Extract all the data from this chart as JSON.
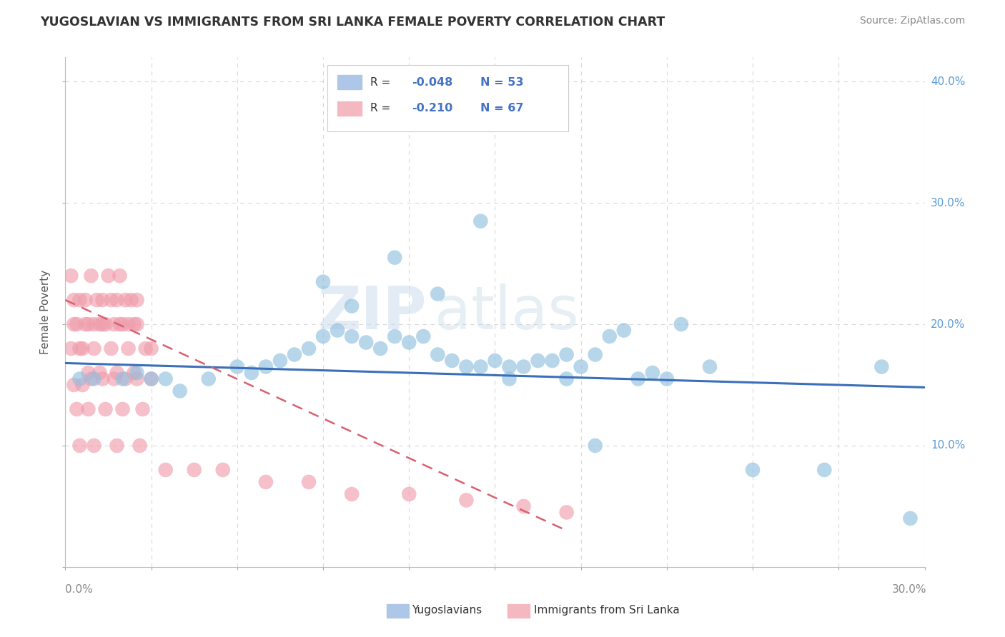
{
  "title": "YUGOSLAVIAN VS IMMIGRANTS FROM SRI LANKA FEMALE POVERTY CORRELATION CHART",
  "source": "Source: ZipAtlas.com",
  "ylabel": "Female Poverty",
  "xlim": [
    0,
    0.3
  ],
  "ylim": [
    0,
    0.42
  ],
  "yticks": [
    0,
    0.1,
    0.2,
    0.3,
    0.4
  ],
  "xticks": [
    0,
    0.03,
    0.06,
    0.09,
    0.12,
    0.15,
    0.18,
    0.21,
    0.24,
    0.27,
    0.3
  ],
  "blue_scatter_x": [
    0.005,
    0.01,
    0.02,
    0.025,
    0.03,
    0.035,
    0.04,
    0.05,
    0.06,
    0.065,
    0.07,
    0.075,
    0.08,
    0.085,
    0.09,
    0.095,
    0.1,
    0.105,
    0.11,
    0.115,
    0.12,
    0.125,
    0.13,
    0.135,
    0.14,
    0.145,
    0.15,
    0.155,
    0.16,
    0.165,
    0.17,
    0.175,
    0.18,
    0.185,
    0.19,
    0.195,
    0.2,
    0.205,
    0.21,
    0.215,
    0.09,
    0.1,
    0.115,
    0.13,
    0.145,
    0.155,
    0.175,
    0.185,
    0.225,
    0.24,
    0.265,
    0.285,
    0.295
  ],
  "blue_scatter_y": [
    0.155,
    0.155,
    0.155,
    0.16,
    0.155,
    0.155,
    0.145,
    0.155,
    0.165,
    0.16,
    0.165,
    0.17,
    0.175,
    0.18,
    0.19,
    0.195,
    0.19,
    0.185,
    0.18,
    0.19,
    0.185,
    0.19,
    0.175,
    0.17,
    0.165,
    0.165,
    0.17,
    0.165,
    0.165,
    0.17,
    0.17,
    0.175,
    0.165,
    0.175,
    0.19,
    0.195,
    0.155,
    0.16,
    0.155,
    0.2,
    0.235,
    0.215,
    0.255,
    0.225,
    0.285,
    0.155,
    0.155,
    0.1,
    0.165,
    0.08,
    0.08,
    0.165,
    0.04
  ],
  "pink_scatter_x": [
    0.002,
    0.003,
    0.004,
    0.005,
    0.006,
    0.007,
    0.008,
    0.009,
    0.01,
    0.011,
    0.012,
    0.013,
    0.014,
    0.015,
    0.016,
    0.017,
    0.018,
    0.019,
    0.02,
    0.021,
    0.022,
    0.023,
    0.024,
    0.025,
    0.002,
    0.003,
    0.005,
    0.007,
    0.01,
    0.013,
    0.016,
    0.019,
    0.022,
    0.025,
    0.028,
    0.008,
    0.012,
    0.018,
    0.024,
    0.03,
    0.003,
    0.006,
    0.009,
    0.013,
    0.017,
    0.021,
    0.025,
    0.03,
    0.004,
    0.008,
    0.014,
    0.02,
    0.027,
    0.005,
    0.01,
    0.018,
    0.026,
    0.035,
    0.045,
    0.055,
    0.07,
    0.085,
    0.1,
    0.12,
    0.14,
    0.16,
    0.175
  ],
  "pink_scatter_y": [
    0.24,
    0.22,
    0.2,
    0.22,
    0.18,
    0.22,
    0.2,
    0.24,
    0.2,
    0.22,
    0.2,
    0.22,
    0.2,
    0.24,
    0.22,
    0.2,
    0.22,
    0.24,
    0.2,
    0.22,
    0.2,
    0.22,
    0.2,
    0.22,
    0.18,
    0.2,
    0.18,
    0.2,
    0.18,
    0.2,
    0.18,
    0.2,
    0.18,
    0.2,
    0.18,
    0.16,
    0.16,
    0.16,
    0.16,
    0.18,
    0.15,
    0.15,
    0.155,
    0.155,
    0.155,
    0.155,
    0.155,
    0.155,
    0.13,
    0.13,
    0.13,
    0.13,
    0.13,
    0.1,
    0.1,
    0.1,
    0.1,
    0.08,
    0.08,
    0.08,
    0.07,
    0.07,
    0.06,
    0.06,
    0.055,
    0.05,
    0.045
  ],
  "blue_line_x": [
    0.0,
    0.3
  ],
  "blue_line_y": [
    0.168,
    0.148
  ],
  "pink_line_x": [
    0.0,
    0.175
  ],
  "pink_line_y": [
    0.22,
    0.03
  ],
  "watermark_zip": "ZIP",
  "watermark_atlas": "atlas",
  "background_color": "#ffffff",
  "grid_color": "#d8d8d8",
  "blue_color": "#92c0e0",
  "pink_color": "#f09ead",
  "blue_line_color": "#3a6fba",
  "pink_line_color": "#d96070",
  "title_color": "#333333",
  "axis_label_color": "#555555",
  "right_label_color": "#5b9bd5",
  "legend_blue_fill": "#aec6e8",
  "legend_pink_fill": "#f4b8c1",
  "legend_text_dark": "#333333",
  "legend_text_blue": "#4472c4"
}
